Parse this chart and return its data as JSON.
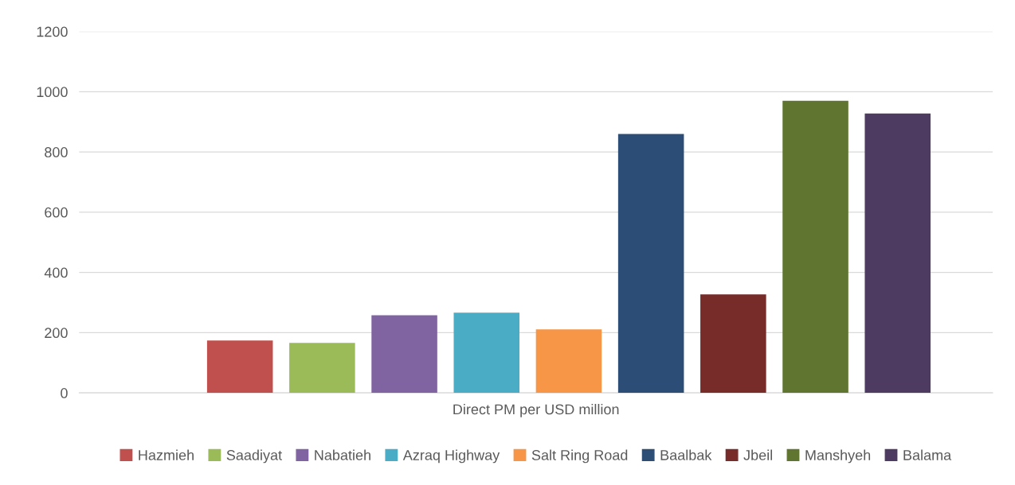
{
  "chart_data": {
    "type": "bar",
    "categories": [
      "Direct PM per USD million"
    ],
    "series": [
      {
        "name": "Hazmieh",
        "color": "#c0504d",
        "values": [
          174
        ]
      },
      {
        "name": "Saadiyat",
        "color": "#9bbb59",
        "values": [
          166
        ]
      },
      {
        "name": "Nabatieh",
        "color": "#8064a2",
        "values": [
          258
        ]
      },
      {
        "name": "Azraq Highway",
        "color": "#4bacc6",
        "values": [
          266
        ]
      },
      {
        "name": "Salt Ring Road",
        "color": "#f79646",
        "values": [
          211
        ]
      },
      {
        "name": "Baalbak",
        "color": "#2c4d75",
        "values": [
          860
        ]
      },
      {
        "name": "Jbeil",
        "color": "#772c2a",
        "values": [
          327
        ]
      },
      {
        "name": "Manshyeh",
        "color": "#5f7530",
        "values": [
          970
        ]
      },
      {
        "name": "Balama",
        "color": "#4d3b62",
        "values": [
          928
        ]
      }
    ],
    "ylim": [
      0,
      1200
    ],
    "yticks": [
      0,
      200,
      400,
      600,
      800,
      1000,
      1200
    ],
    "grid": "y",
    "legend": "bottom"
  }
}
